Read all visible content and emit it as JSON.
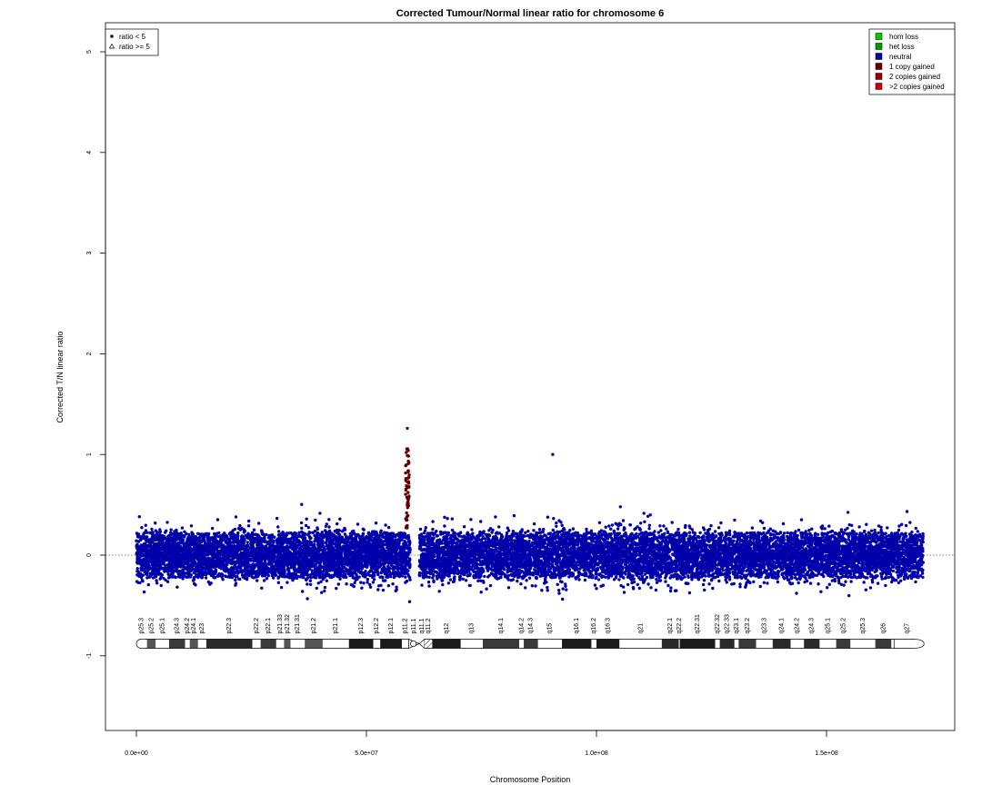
{
  "chart_data": {
    "type": "scatter",
    "title": "Corrected Tumour/Normal linear ratio for chromosome  6",
    "xlabel": "Chromosome Position",
    "ylabel": "Corrected T/N linear ratio",
    "xlim": [
      0,
      171000000
    ],
    "ylim": [
      -1.8,
      5.3
    ],
    "x_ticks": [
      0,
      50000000,
      100000000,
      150000000
    ],
    "x_tick_labels": [
      "0.0e+00",
      "5.0e+07",
      "1.0e+08",
      "1.5e+08"
    ],
    "y_ticks": [
      -1,
      0,
      1,
      2,
      3,
      4,
      5
    ],
    "y_tick_labels": [
      "-1",
      "0",
      "1",
      "2",
      "3",
      "4",
      "5"
    ],
    "reference_line_y": 0,
    "chromosome_end": 171000000,
    "centromere_gap": [
      59500000,
      61500000
    ],
    "gained_region": [
      58500000,
      59300000
    ],
    "notable_points": [
      {
        "x": 58900000,
        "y": 1.26,
        "state": "1 copy gained"
      },
      {
        "x": 90500000,
        "y": 1.0,
        "state": "neutral"
      }
    ],
    "shape_legend": {
      "position": "top-left",
      "entries": [
        {
          "label": "ratio < 5",
          "shape": "filled-circle"
        },
        {
          "label": "ratio >= 5",
          "shape": "open-triangle"
        }
      ]
    },
    "state_legend": {
      "position": "top-right",
      "entries": [
        {
          "label": "hom loss",
          "color": "#00CC00"
        },
        {
          "label": "het loss",
          "color": "#009900"
        },
        {
          "label": "neutral",
          "color": "#0000AA"
        },
        {
          "label": "1 copy gained",
          "color": "#660000"
        },
        {
          "label": "2 copies gained",
          "color": "#990000"
        },
        {
          "label": ">2 copies gained",
          "color": "#CC0000"
        }
      ]
    },
    "ideogram_y": -0.88,
    "ideogram_bands": [
      {
        "name": "p25.3",
        "start": 0,
        "end": 2300000,
        "stain": "gneg"
      },
      {
        "name": "p25.2",
        "start": 2300000,
        "end": 4200000,
        "stain": "gpos25"
      },
      {
        "name": "p25.1",
        "start": 4200000,
        "end": 7100000,
        "stain": "gneg"
      },
      {
        "name": "p24.3",
        "start": 7100000,
        "end": 10600000,
        "stain": "gpos50"
      },
      {
        "name": "p24.2",
        "start": 10600000,
        "end": 11600000,
        "stain": "gneg"
      },
      {
        "name": "p24.1",
        "start": 11600000,
        "end": 13400000,
        "stain": "gpos25"
      },
      {
        "name": "p23",
        "start": 13400000,
        "end": 15200000,
        "stain": "gneg"
      },
      {
        "name": "p22.3",
        "start": 15200000,
        "end": 25200000,
        "stain": "gpos75"
      },
      {
        "name": "p22.2",
        "start": 25200000,
        "end": 27000000,
        "stain": "gneg"
      },
      {
        "name": "p22.1",
        "start": 27000000,
        "end": 30400000,
        "stain": "gpos50"
      },
      {
        "name": "p21.33",
        "start": 30400000,
        "end": 32100000,
        "stain": "gneg"
      },
      {
        "name": "p21.32",
        "start": 32100000,
        "end": 33500000,
        "stain": "gpos25"
      },
      {
        "name": "p21.31",
        "start": 33500000,
        "end": 36600000,
        "stain": "gneg"
      },
      {
        "name": "p21.2",
        "start": 36600000,
        "end": 40500000,
        "stain": "gpos25"
      },
      {
        "name": "p21.1",
        "start": 40500000,
        "end": 46200000,
        "stain": "gneg"
      },
      {
        "name": "p12.3",
        "start": 46200000,
        "end": 51500000,
        "stain": "gpos100"
      },
      {
        "name": "p12.2",
        "start": 51500000,
        "end": 53000000,
        "stain": "gneg"
      },
      {
        "name": "p12.1",
        "start": 53000000,
        "end": 57700000,
        "stain": "gpos100"
      },
      {
        "name": "p11.2",
        "start": 57700000,
        "end": 59200000,
        "stain": "gneg"
      },
      {
        "name": "p11.1",
        "start": 59200000,
        "end": 61500000,
        "stain": "acen"
      },
      {
        "name": "q11.1",
        "start": 61500000,
        "end": 62600000,
        "stain": "acen"
      },
      {
        "name": "q11.2",
        "start": 62600000,
        "end": 64300000,
        "stain": "gvar"
      },
      {
        "name": "q12",
        "start": 64300000,
        "end": 70500000,
        "stain": "gpos100"
      },
      {
        "name": "q13",
        "start": 70500000,
        "end": 75300000,
        "stain": "gneg"
      },
      {
        "name": "q14.1",
        "start": 75300000,
        "end": 83200000,
        "stain": "gpos50"
      },
      {
        "name": "q14.2",
        "start": 83200000,
        "end": 84200000,
        "stain": "gneg"
      },
      {
        "name": "q14.3",
        "start": 84200000,
        "end": 87300000,
        "stain": "gpos50"
      },
      {
        "name": "q15",
        "start": 87300000,
        "end": 92500000,
        "stain": "gneg"
      },
      {
        "name": "q16.1",
        "start": 92500000,
        "end": 98900000,
        "stain": "gpos100"
      },
      {
        "name": "q16.2",
        "start": 98900000,
        "end": 100000000,
        "stain": "gneg"
      },
      {
        "name": "q16.3",
        "start": 100000000,
        "end": 105000000,
        "stain": "gpos100"
      },
      {
        "name": "q21",
        "start": 105000000,
        "end": 114200000,
        "stain": "gneg"
      },
      {
        "name": "q22.1",
        "start": 114200000,
        "end": 117900000,
        "stain": "gpos75"
      },
      {
        "name": "q22.2",
        "start": 117900000,
        "end": 118100000,
        "stain": "gneg"
      },
      {
        "name": "q22.31",
        "start": 118100000,
        "end": 125800000,
        "stain": "gpos100"
      },
      {
        "name": "q22.32",
        "start": 125800000,
        "end": 126800000,
        "stain": "gneg"
      },
      {
        "name": "q22.33",
        "start": 126800000,
        "end": 130000000,
        "stain": "gpos75"
      },
      {
        "name": "q23.1",
        "start": 130000000,
        "end": 130900000,
        "stain": "gneg"
      },
      {
        "name": "q23.2",
        "start": 130900000,
        "end": 134700000,
        "stain": "gpos50"
      },
      {
        "name": "q23.3",
        "start": 134700000,
        "end": 138300000,
        "stain": "gneg"
      },
      {
        "name": "q24.1",
        "start": 138300000,
        "end": 142200000,
        "stain": "gpos75"
      },
      {
        "name": "q24.2",
        "start": 142200000,
        "end": 145100000,
        "stain": "gneg"
      },
      {
        "name": "q24.3",
        "start": 145100000,
        "end": 148500000,
        "stain": "gpos75"
      },
      {
        "name": "q25.1",
        "start": 148500000,
        "end": 152100000,
        "stain": "gneg"
      },
      {
        "name": "q25.2",
        "start": 152100000,
        "end": 155200000,
        "stain": "gpos50"
      },
      {
        "name": "q25.3",
        "start": 155200000,
        "end": 160600000,
        "stain": "gneg"
      },
      {
        "name": "q26",
        "start": 160600000,
        "end": 164100000,
        "stain": "gpos50"
      },
      {
        "name": "q27",
        "start": 164100000,
        "end": 171000000,
        "stain": "gneg"
      }
    ]
  }
}
